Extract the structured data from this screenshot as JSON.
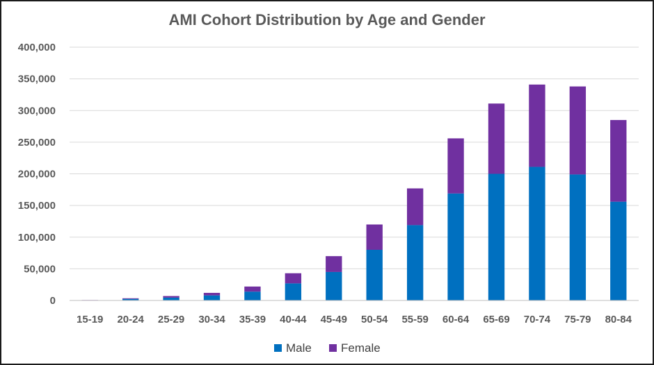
{
  "chart_data": {
    "type": "bar",
    "stacked": true,
    "title": "AMI Cohort Distribution by Age and Gender",
    "xlabel": "",
    "ylabel": "",
    "categories": [
      "15-19",
      "20-24",
      "25-29",
      "30-34",
      "35-39",
      "40-44",
      "45-49",
      "50-54",
      "55-59",
      "60-64",
      "65-69",
      "70-74",
      "75-79",
      "80-84"
    ],
    "series": [
      {
        "name": "Male",
        "color": "#0070c0",
        "values": [
          500,
          2500,
          4500,
          8000,
          14000,
          27000,
          45000,
          80000,
          119000,
          169000,
          200000,
          211000,
          199000,
          156000
        ]
      },
      {
        "name": "Female",
        "color": "#7030a0",
        "values": [
          200,
          1000,
          2500,
          4000,
          8000,
          16000,
          25000,
          40000,
          58000,
          87000,
          111000,
          130000,
          139000,
          129000
        ]
      }
    ],
    "ylim": [
      0,
      400000
    ],
    "yticks": [
      0,
      50000,
      100000,
      150000,
      200000,
      250000,
      300000,
      350000,
      400000
    ],
    "ytick_labels": [
      "0",
      "50,000",
      "100,000",
      "150,000",
      "200,000",
      "250,000",
      "300,000",
      "350,000",
      "400,000"
    ],
    "grid": true,
    "legend": "bottom"
  }
}
